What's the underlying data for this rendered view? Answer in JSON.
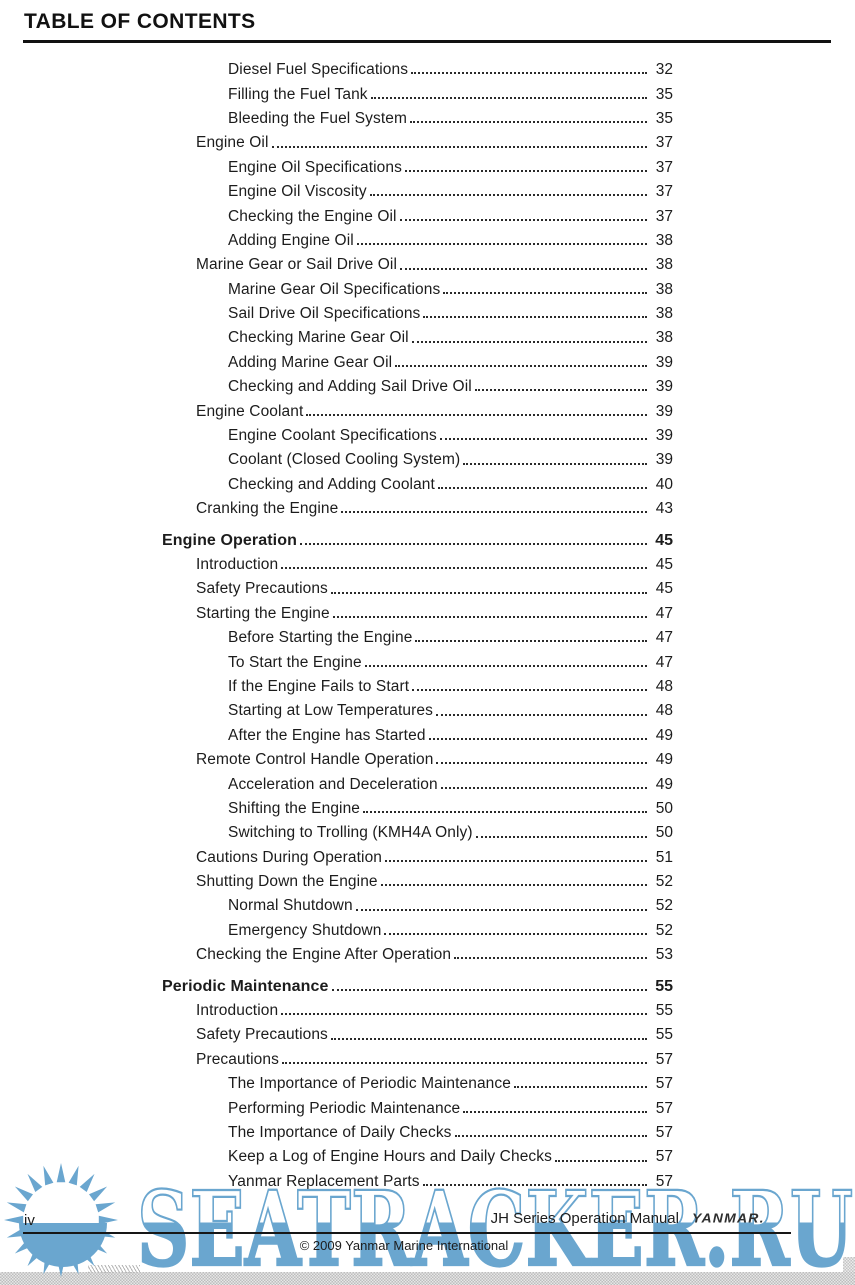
{
  "page": {
    "title": "TABLE OF CONTENTS",
    "page_number": "iv",
    "footer": {
      "manual_title": "JH Series Operation Manual",
      "brand": "YANMAR.",
      "copyright": "© 2009 Yanmar Marine International"
    },
    "watermark": {
      "text": "SEATRACKER.RU",
      "color": "#6aa6cf"
    }
  },
  "toc": {
    "entries": [
      {
        "label": "Diesel Fuel Specifications",
        "page": "32",
        "level": 2
      },
      {
        "label": "Filling the Fuel Tank",
        "page": "35",
        "level": 2
      },
      {
        "label": "Bleeding the Fuel System",
        "page": "35",
        "level": 2
      },
      {
        "label": "Engine Oil",
        "page": "37",
        "level": 1
      },
      {
        "label": "Engine Oil Specifications",
        "page": "37",
        "level": 2
      },
      {
        "label": "Engine Oil Viscosity",
        "page": "37",
        "level": 2
      },
      {
        "label": "Checking the Engine Oil",
        "page": "37",
        "level": 2
      },
      {
        "label": "Adding Engine Oil",
        "page": "38",
        "level": 2
      },
      {
        "label": "Marine Gear or Sail Drive Oil",
        "page": "38",
        "level": 1
      },
      {
        "label": "Marine Gear Oil Specifications",
        "page": "38",
        "level": 2
      },
      {
        "label": "Sail Drive Oil Specifications",
        "page": "38",
        "level": 2
      },
      {
        "label": "Checking Marine Gear Oil",
        "page": "38",
        "level": 2
      },
      {
        "label": "Adding Marine Gear Oil",
        "page": "39",
        "level": 2
      },
      {
        "label": "Checking and Adding Sail Drive Oil",
        "page": "39",
        "level": 2
      },
      {
        "label": "Engine Coolant",
        "page": "39",
        "level": 1
      },
      {
        "label": "Engine Coolant Specifications",
        "page": "39",
        "level": 2
      },
      {
        "label": "Coolant (Closed Cooling System)",
        "page": "39",
        "level": 2
      },
      {
        "label": "Checking and Adding Coolant",
        "page": "40",
        "level": 2
      },
      {
        "label": "Cranking the Engine",
        "page": "43",
        "level": 1
      },
      {
        "label": "Engine Operation",
        "page": "45",
        "level": 0
      },
      {
        "label": "Introduction",
        "page": "45",
        "level": 1
      },
      {
        "label": "Safety Precautions",
        "page": "45",
        "level": 1
      },
      {
        "label": "Starting the Engine",
        "page": "47",
        "level": 1
      },
      {
        "label": "Before Starting the Engine",
        "page": "47",
        "level": 2
      },
      {
        "label": "To Start the Engine",
        "page": "47",
        "level": 2
      },
      {
        "label": "If the Engine Fails to Start",
        "page": "48",
        "level": 2
      },
      {
        "label": "Starting at Low Temperatures",
        "page": "48",
        "level": 2
      },
      {
        "label": "After the Engine has Started",
        "page": "49",
        "level": 2
      },
      {
        "label": "Remote Control Handle Operation",
        "page": "49",
        "level": 1
      },
      {
        "label": "Acceleration and Deceleration",
        "page": "49",
        "level": 2
      },
      {
        "label": "Shifting the Engine",
        "page": "50",
        "level": 2
      },
      {
        "label": "Switching to Trolling (KMH4A Only)",
        "page": "50",
        "level": 2
      },
      {
        "label": "Cautions During Operation",
        "page": "51",
        "level": 1
      },
      {
        "label": "Shutting Down the Engine",
        "page": "52",
        "level": 1
      },
      {
        "label": "Normal Shutdown",
        "page": "52",
        "level": 2
      },
      {
        "label": "Emergency Shutdown",
        "page": "52",
        "level": 2
      },
      {
        "label": "Checking the Engine After Operation",
        "page": "53",
        "level": 1
      },
      {
        "label": "Periodic Maintenance",
        "page": "55",
        "level": 0
      },
      {
        "label": "Introduction",
        "page": "55",
        "level": 1
      },
      {
        "label": "Safety Precautions",
        "page": "55",
        "level": 1
      },
      {
        "label": "Precautions",
        "page": "57",
        "level": 1
      },
      {
        "label": "The Importance of Periodic Maintenance",
        "page": "57",
        "level": 2
      },
      {
        "label": "Performing Periodic Maintenance",
        "page": "57",
        "level": 2
      },
      {
        "label": "The Importance of Daily Checks",
        "page": "57",
        "level": 2
      },
      {
        "label": "Keep a Log of Engine Hours and Daily Checks",
        "page": "57",
        "level": 2
      },
      {
        "label": "Yanmar Replacement Parts",
        "page": "57",
        "level": 2
      }
    ]
  }
}
